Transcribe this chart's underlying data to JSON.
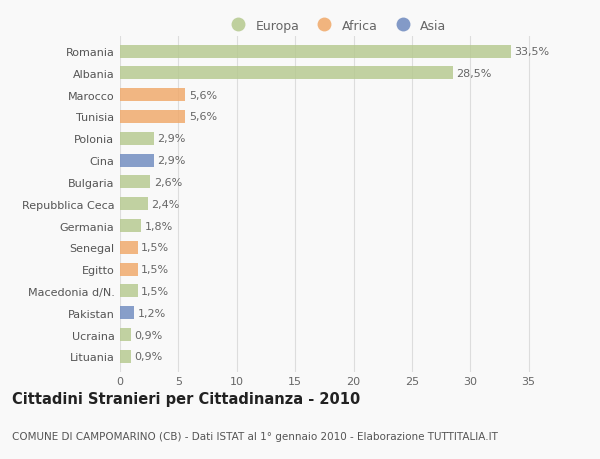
{
  "categories": [
    "Romania",
    "Albania",
    "Marocco",
    "Tunisia",
    "Polonia",
    "Cina",
    "Bulgaria",
    "Repubblica Ceca",
    "Germania",
    "Senegal",
    "Egitto",
    "Macedonia d/N.",
    "Pakistan",
    "Ucraina",
    "Lituania"
  ],
  "values": [
    33.5,
    28.5,
    5.6,
    5.6,
    2.9,
    2.9,
    2.6,
    2.4,
    1.8,
    1.5,
    1.5,
    1.5,
    1.2,
    0.9,
    0.9
  ],
  "labels": [
    "33,5%",
    "28,5%",
    "5,6%",
    "5,6%",
    "2,9%",
    "2,9%",
    "2,6%",
    "2,4%",
    "1,8%",
    "1,5%",
    "1,5%",
    "1,5%",
    "1,2%",
    "0,9%",
    "0,9%"
  ],
  "colors": [
    "#b5c98e",
    "#b5c98e",
    "#f0a868",
    "#f0a868",
    "#b5c98e",
    "#6e8abf",
    "#b5c98e",
    "#b5c98e",
    "#b5c98e",
    "#f0a868",
    "#f0a868",
    "#b5c98e",
    "#6e8abf",
    "#b5c98e",
    "#b5c98e"
  ],
  "legend_labels": [
    "Europa",
    "Africa",
    "Asia"
  ],
  "legend_colors": [
    "#b5c98e",
    "#f0a868",
    "#6e8abf"
  ],
  "title": "Cittadini Stranieri per Cittadinanza - 2010",
  "subtitle": "COMUNE DI CAMPOMARINO (CB) - Dati ISTAT al 1° gennaio 2010 - Elaborazione TUTTITALIA.IT",
  "xlim": [
    0,
    37
  ],
  "xticks": [
    0,
    5,
    10,
    15,
    20,
    25,
    30,
    35
  ],
  "background_color": "#f9f9f9",
  "grid_color": "#dddddd",
  "bar_height": 0.6,
  "label_fontsize": 8,
  "tick_fontsize": 8,
  "title_fontsize": 10.5,
  "subtitle_fontsize": 7.5
}
